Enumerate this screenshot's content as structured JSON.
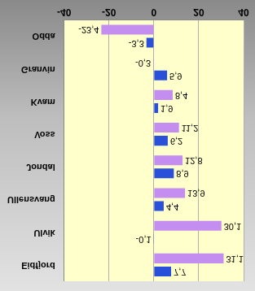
{
  "chart_data": {
    "type": "bar",
    "orientation": "horizontal",
    "categories": [
      "Eidfjord",
      "Ulvik",
      "Ullensvang",
      "Jondal",
      "Voss",
      "Kvam",
      "Granvin",
      "Odda"
    ],
    "series": [
      {
        "color": "#2a4fd8",
        "values": [
          7.7,
          -0.1,
          4.4,
          8.9,
          6.2,
          1.9,
          5.9,
          -3.3
        ],
        "value_labels": [
          "7,7",
          "-0,1",
          "4,4",
          "8,9",
          "6,2",
          "1,9",
          "5,9",
          "-3,3"
        ]
      },
      {
        "color": "#c48ef0",
        "values": [
          31.1,
          30.1,
          13.9,
          12.8,
          11.2,
          8.4,
          -0.3,
          -23.4
        ],
        "value_labels": [
          "31,1",
          "30,1",
          "13,9",
          "12,8",
          "11,2",
          "8,4",
          "-0,3",
          "-23,4"
        ]
      }
    ],
    "xlim": [
      -40,
      40
    ],
    "xticks": [
      -40,
      -20,
      0,
      20,
      40
    ],
    "grid": true,
    "data_labels": true
  }
}
